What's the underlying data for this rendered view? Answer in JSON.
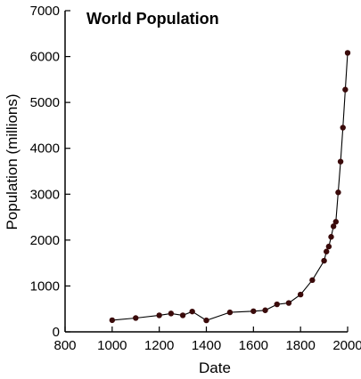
{
  "chart_data": {
    "type": "line",
    "title": "World Population",
    "xlabel": "Date",
    "ylabel": "Population (millions)",
    "xlim": [
      800,
      2000
    ],
    "ylim": [
      0,
      7000
    ],
    "xticks": [
      800,
      1000,
      1200,
      1400,
      1600,
      1800,
      2000
    ],
    "yticks": [
      0,
      1000,
      2000,
      3000,
      4000,
      5000,
      6000,
      7000
    ],
    "grid": false,
    "legend": "none",
    "colors": {
      "line": "#000000",
      "marker": "#3a0a0a"
    },
    "series": [
      {
        "name": "World Population",
        "x": [
          1000,
          1100,
          1200,
          1250,
          1300,
          1340,
          1400,
          1500,
          1600,
          1650,
          1700,
          1750,
          1800,
          1850,
          1900,
          1910,
          1920,
          1930,
          1940,
          1950,
          1960,
          1970,
          1980,
          1990,
          2000
        ],
        "values": [
          254,
          301,
          360,
          400,
          360,
          443,
          250,
          425,
          450,
          470,
          600,
          629,
          813,
          1128,
          1550,
          1750,
          1860,
          2070,
          2300,
          2400,
          3040,
          3710,
          4450,
          5280,
          6080
        ]
      }
    ]
  }
}
